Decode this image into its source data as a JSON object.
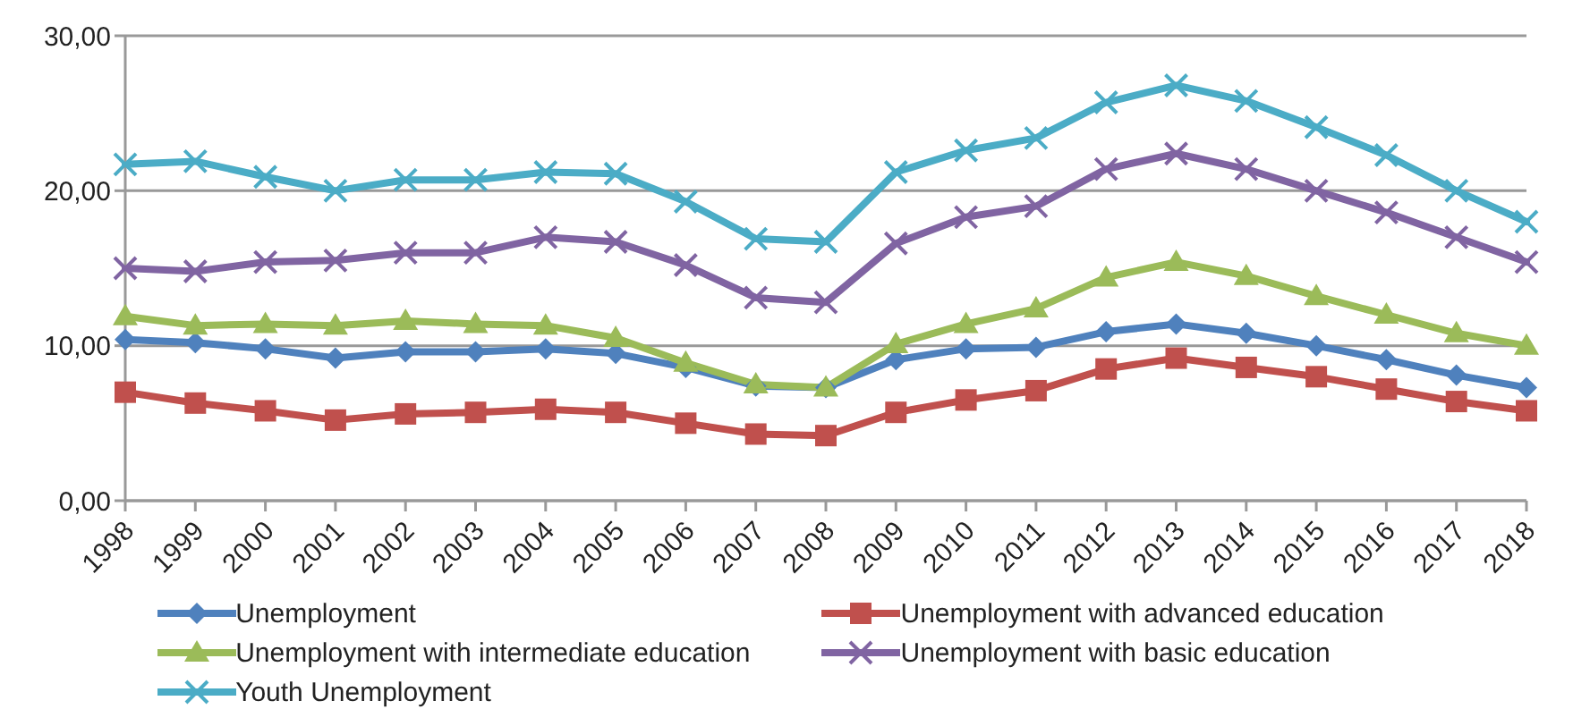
{
  "chart_data": {
    "type": "line",
    "categories": [
      "1998",
      "1999",
      "2000",
      "2001",
      "2002",
      "2003",
      "2004",
      "2005",
      "2006",
      "2007",
      "2008",
      "2009",
      "2010",
      "2011",
      "2012",
      "2013",
      "2014",
      "2015",
      "2016",
      "2017",
      "2018"
    ],
    "series": [
      {
        "name": "Unemployment",
        "color": "#4f81bd",
        "marker": "diamond",
        "values": [
          10.4,
          10.2,
          9.8,
          9.2,
          9.6,
          9.6,
          9.8,
          9.5,
          8.6,
          7.4,
          7.3,
          9.1,
          9.8,
          9.9,
          10.9,
          11.4,
          10.8,
          10.0,
          9.1,
          8.1,
          7.3
        ]
      },
      {
        "name": "Unemployment with advanced education",
        "color": "#c0504d",
        "marker": "square",
        "values": [
          7.0,
          6.3,
          5.8,
          5.2,
          5.6,
          5.7,
          5.9,
          5.7,
          5.0,
          4.3,
          4.2,
          5.7,
          6.5,
          7.1,
          8.5,
          9.2,
          8.6,
          8.0,
          7.2,
          6.4,
          5.8
        ]
      },
      {
        "name": "Unemployment with intermediate education",
        "color": "#9bbb59",
        "marker": "triangle",
        "values": [
          11.9,
          11.3,
          11.4,
          11.3,
          11.6,
          11.4,
          11.3,
          10.5,
          8.9,
          7.5,
          7.3,
          10.1,
          11.4,
          12.4,
          14.4,
          15.4,
          14.5,
          13.2,
          12.0,
          10.8,
          10.0
        ]
      },
      {
        "name": "Unemployment with basic education",
        "color": "#8064a2",
        "marker": "cross",
        "values": [
          15.0,
          14.8,
          15.4,
          15.5,
          16.0,
          16.0,
          17.0,
          16.7,
          15.2,
          13.1,
          12.8,
          16.6,
          18.3,
          19.0,
          21.4,
          22.4,
          21.4,
          20.0,
          18.6,
          17.0,
          15.4
        ]
      },
      {
        "name": "Youth Unemployment",
        "color": "#4bacc6",
        "marker": "cross",
        "values": [
          21.7,
          21.9,
          20.9,
          20.0,
          20.7,
          20.7,
          21.2,
          21.1,
          19.3,
          16.9,
          16.7,
          21.2,
          22.6,
          23.4,
          25.7,
          26.8,
          25.8,
          24.1,
          22.3,
          20.0,
          18.0
        ]
      }
    ],
    "ylim": [
      0,
      30
    ],
    "yticks": [
      {
        "value": 0,
        "label": "0,00"
      },
      {
        "value": 10,
        "label": "10,00"
      },
      {
        "value": 20,
        "label": "20,00"
      },
      {
        "value": 30,
        "label": "30,00"
      }
    ],
    "grid": "y",
    "legend": "bottom",
    "line_style": "solid"
  }
}
